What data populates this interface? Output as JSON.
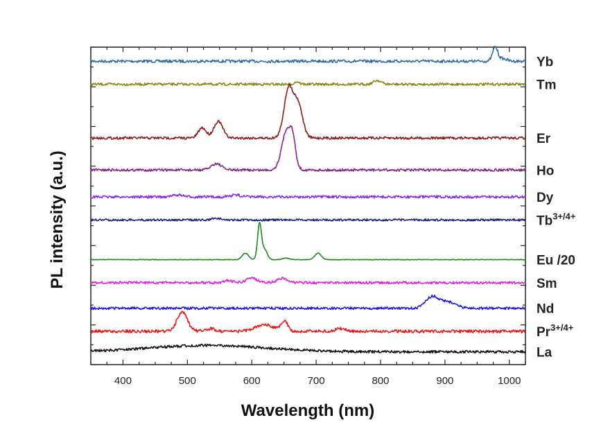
{
  "chart_data": {
    "type": "line",
    "title": "",
    "xlabel": "Wavelength (nm)",
    "ylabel": "PL intensity (a.u.)",
    "xlim": [
      350,
      1025
    ],
    "x_ticks": [
      400,
      500,
      600,
      700,
      800,
      900,
      1000
    ],
    "x_tick_labels": [
      "400",
      "500",
      "600",
      "700",
      "800",
      "900",
      "1000"
    ],
    "y_ticks_shown": false,
    "grid": false,
    "legend": "labels at right end of each trace",
    "series": [
      {
        "name": "Yb",
        "label_main": "Yb",
        "label_sup": "",
        "color": "#2e6ca4",
        "baseline": 0.11,
        "noise": 0.011,
        "peaks": [
          {
            "x": 978,
            "h": 0.11,
            "w": 4
          },
          {
            "x": 990,
            "h": 0.02,
            "w": 6
          }
        ]
      },
      {
        "name": "Tm",
        "label_main": "Tm",
        "label_sup": "",
        "color": "#8a8a10",
        "baseline": 0.29,
        "noise": 0.01,
        "peaks": [
          {
            "x": 795,
            "h": 0.03,
            "w": 6
          },
          {
            "x": 670,
            "h": 0.02,
            "w": 4
          }
        ]
      },
      {
        "name": "Er",
        "label_main": "Er",
        "label_sup": "",
        "color": "#8b1a1a",
        "baseline": 0.71,
        "noise": 0.01,
        "peaks": [
          {
            "x": 523,
            "h": 0.08,
            "w": 6
          },
          {
            "x": 548,
            "h": 0.13,
            "w": 7
          },
          {
            "x": 657,
            "h": 0.38,
            "w": 7
          },
          {
            "x": 672,
            "h": 0.26,
            "w": 7
          }
        ]
      },
      {
        "name": "Ho",
        "label_main": "Ho",
        "label_sup": "",
        "color": "#8b208b",
        "baseline": 0.96,
        "noise": 0.01,
        "peaks": [
          {
            "x": 545,
            "h": 0.05,
            "w": 8
          },
          {
            "x": 655,
            "h": 0.32,
            "w": 8
          },
          {
            "x": 664,
            "h": 0.13,
            "w": 4
          }
        ]
      },
      {
        "name": "Dy",
        "label_main": "Dy",
        "label_sup": "",
        "color": "#8a2be2",
        "baseline": 1.17,
        "noise": 0.01,
        "peaks": [
          {
            "x": 485,
            "h": 0.015,
            "w": 8
          },
          {
            "x": 575,
            "h": 0.015,
            "w": 8
          }
        ]
      },
      {
        "name": "Tb3+/4+",
        "label_main": "Tb",
        "label_sup": "3+/4+",
        "color": "#1a1a80",
        "baseline": 1.35,
        "noise": 0.008,
        "peaks": [
          {
            "x": 545,
            "h": 0.015,
            "w": 6
          }
        ]
      },
      {
        "name": "Eu /20",
        "label_main": "Eu /20",
        "label_sup": "",
        "color": "#1a8a1a",
        "baseline": 1.66,
        "noise": 0.002,
        "peaks": [
          {
            "x": 590,
            "h": 0.05,
            "w": 5
          },
          {
            "x": 612,
            "h": 0.28,
            "w": 3
          },
          {
            "x": 620,
            "h": 0.08,
            "w": 4
          },
          {
            "x": 653,
            "h": 0.012,
            "w": 5
          },
          {
            "x": 703,
            "h": 0.05,
            "w": 5
          }
        ]
      },
      {
        "name": "Sm",
        "label_main": "Sm",
        "label_sup": "",
        "color": "#e020e0",
        "baseline": 1.84,
        "noise": 0.01,
        "peaks": [
          {
            "x": 563,
            "h": 0.02,
            "w": 6
          },
          {
            "x": 600,
            "h": 0.035,
            "w": 8
          },
          {
            "x": 648,
            "h": 0.035,
            "w": 8
          }
        ]
      },
      {
        "name": "Nd",
        "label_main": "Nd",
        "label_sup": "",
        "color": "#1a1ad8",
        "baseline": 2.04,
        "noise": 0.01,
        "peaks": [
          {
            "x": 880,
            "h": 0.09,
            "w": 10
          },
          {
            "x": 905,
            "h": 0.05,
            "w": 12
          }
        ]
      },
      {
        "name": "Pr3+/4+",
        "label_main": "Pr",
        "label_sup": "3+/4+",
        "color": "#e81818",
        "baseline": 2.22,
        "noise": 0.012,
        "peaks": [
          {
            "x": 492,
            "h": 0.15,
            "w": 8
          },
          {
            "x": 535,
            "h": 0.02,
            "w": 8
          },
          {
            "x": 620,
            "h": 0.05,
            "w": 14
          },
          {
            "x": 651,
            "h": 0.08,
            "w": 5
          },
          {
            "x": 738,
            "h": 0.02,
            "w": 8
          }
        ]
      },
      {
        "name": "La",
        "label_main": "La",
        "label_sup": "",
        "color": "#111111",
        "baseline": 2.38,
        "noise": 0.01,
        "peaks": [
          {
            "x": 530,
            "h": 0.05,
            "w": 90
          }
        ]
      }
    ]
  }
}
